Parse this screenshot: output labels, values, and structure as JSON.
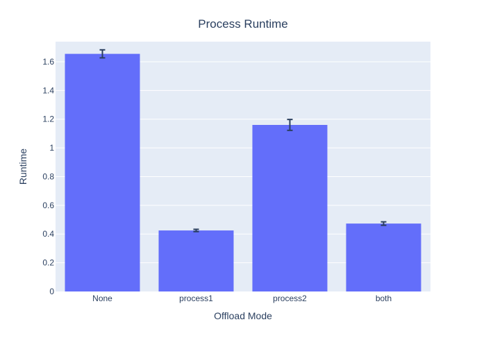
{
  "chart_data": {
    "type": "bar",
    "title": "Process Runtime",
    "xlabel": "Offload Mode",
    "ylabel": "Runtime",
    "categories": [
      "None",
      "process1",
      "process2",
      "both"
    ],
    "values": [
      1.655,
      0.425,
      1.16,
      0.473
    ],
    "error": [
      0.028,
      0.008,
      0.038,
      0.012
    ],
    "ylim": [
      0,
      1.74
    ],
    "yticks": [
      0,
      0.2,
      0.4,
      0.6,
      0.8,
      1,
      1.2,
      1.4,
      1.6
    ],
    "ytick_labels": [
      "0",
      "0.2",
      "0.4",
      "0.6",
      "0.8",
      "1",
      "1.2",
      "1.4",
      "1.6"
    ],
    "grid": true,
    "colors": {
      "bar": "#636efa",
      "plot_bg": "#e5ecf6",
      "grid": "#ffffff",
      "text": "#2a3f5f",
      "error_bar": "#2a3f5f"
    }
  }
}
